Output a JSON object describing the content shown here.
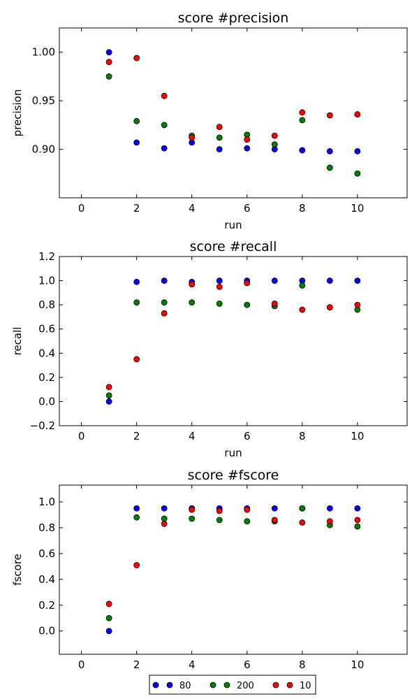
{
  "chart_data": [
    {
      "type": "scatter",
      "title": "score #precision",
      "xlabel": "run",
      "ylabel": "precision",
      "xlim": [
        -0.8,
        11.8
      ],
      "ylim": [
        0.85,
        1.025
      ],
      "xticks": [
        0,
        2,
        4,
        6,
        8,
        10
      ],
      "yticks": [
        0.9,
        0.95,
        1.0
      ],
      "ytick_labels": [
        "0.90",
        "0.95",
        "1.00"
      ],
      "x": [
        1,
        2,
        3,
        4,
        5,
        6,
        7,
        8,
        9,
        10
      ],
      "series": [
        {
          "name": "80",
          "color": "#0000ff",
          "values": [
            1.0,
            0.907,
            0.901,
            0.907,
            0.9,
            0.901,
            0.9,
            0.899,
            0.898,
            0.898
          ]
        },
        {
          "name": "200",
          "color": "#008000",
          "values": [
            0.975,
            0.929,
            0.925,
            0.914,
            0.912,
            0.915,
            0.905,
            0.93,
            0.881,
            0.875
          ]
        },
        {
          "name": "10",
          "color": "#ff0000",
          "values": [
            0.99,
            0.994,
            0.955,
            0.912,
            0.923,
            0.91,
            0.914,
            0.938,
            0.935,
            0.936
          ]
        }
      ]
    },
    {
      "type": "scatter",
      "title": "score #recall",
      "xlabel": "run",
      "ylabel": "recall",
      "xlim": [
        -0.8,
        11.8
      ],
      "ylim": [
        -0.2,
        1.2
      ],
      "xticks": [
        0,
        2,
        4,
        6,
        8,
        10
      ],
      "yticks": [
        -0.2,
        0.0,
        0.2,
        0.4,
        0.6,
        0.8,
        1.0,
        1.2
      ],
      "ytick_labels": [
        "−0.2",
        "0.0",
        "0.2",
        "0.4",
        "0.6",
        "0.8",
        "1.0",
        "1.2"
      ],
      "x": [
        1,
        2,
        3,
        4,
        5,
        6,
        7,
        8,
        9,
        10
      ],
      "series": [
        {
          "name": "80",
          "color": "#0000ff",
          "values": [
            0.0,
            0.99,
            1.0,
            0.99,
            1.0,
            1.0,
            1.0,
            1.0,
            1.0,
            1.0
          ]
        },
        {
          "name": "200",
          "color": "#008000",
          "values": [
            0.05,
            0.82,
            0.82,
            0.82,
            0.81,
            0.8,
            0.79,
            0.96,
            0.78,
            0.76
          ]
        },
        {
          "name": "10",
          "color": "#ff0000",
          "values": [
            0.12,
            0.35,
            0.73,
            0.97,
            0.95,
            0.98,
            0.81,
            0.76,
            0.78,
            0.8
          ]
        }
      ]
    },
    {
      "type": "scatter",
      "title": "score #fscore",
      "xlabel": "",
      "ylabel": "fscore",
      "xlim": [
        -0.8,
        11.8
      ],
      "ylim": [
        -0.18,
        1.13
      ],
      "xticks": [
        0,
        2,
        4,
        6,
        8,
        10
      ],
      "yticks": [
        0.0,
        0.2,
        0.4,
        0.6,
        0.8,
        1.0
      ],
      "ytick_labels": [
        "0.0",
        "0.2",
        "0.4",
        "0.6",
        "0.8",
        "1.0"
      ],
      "x": [
        1,
        2,
        3,
        4,
        5,
        6,
        7,
        8,
        9,
        10
      ],
      "series": [
        {
          "name": "80",
          "color": "#0000ff",
          "values": [
            0.0,
            0.95,
            0.95,
            0.95,
            0.95,
            0.95,
            0.95,
            0.95,
            0.95,
            0.95
          ]
        },
        {
          "name": "200",
          "color": "#008000",
          "values": [
            0.1,
            0.88,
            0.87,
            0.87,
            0.86,
            0.85,
            0.85,
            0.95,
            0.82,
            0.81
          ]
        },
        {
          "name": "10",
          "color": "#ff0000",
          "values": [
            0.21,
            0.51,
            0.83,
            0.94,
            0.93,
            0.94,
            0.86,
            0.84,
            0.85,
            0.86
          ]
        }
      ]
    }
  ],
  "legend": {
    "placement": "bottom-center",
    "entries": [
      {
        "label": "80",
        "color": "#0000ff"
      },
      {
        "label": "200",
        "color": "#008000"
      },
      {
        "label": "10",
        "color": "#ff0000"
      }
    ]
  }
}
